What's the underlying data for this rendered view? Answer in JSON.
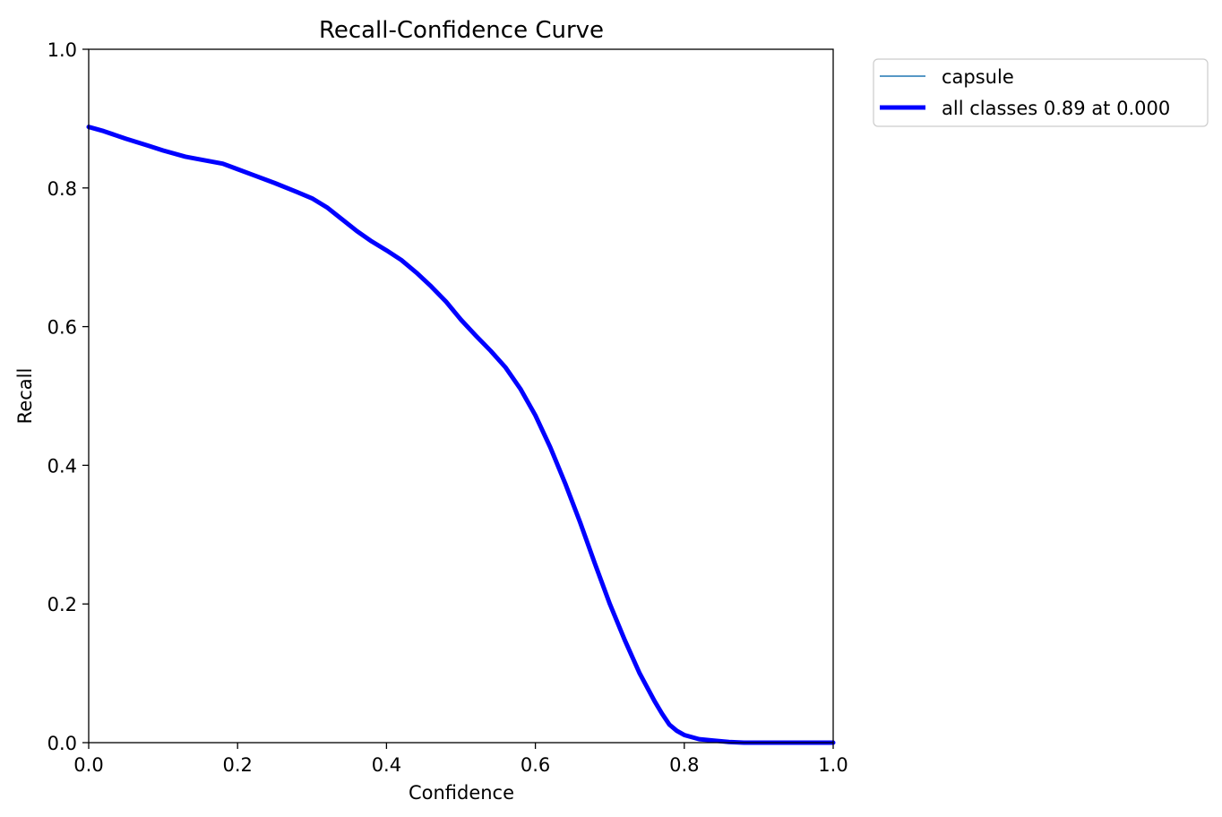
{
  "chart_data": {
    "type": "line",
    "title": "Recall-Confidence Curve",
    "xlabel": "Confidence",
    "ylabel": "Recall",
    "xlim": [
      0.0,
      1.0
    ],
    "ylim": [
      0.0,
      1.0
    ],
    "xticks": [
      "0.0",
      "0.2",
      "0.4",
      "0.6",
      "0.8",
      "1.0"
    ],
    "yticks": [
      "0.0",
      "0.2",
      "0.4",
      "0.6",
      "0.8",
      "1.0"
    ],
    "grid": false,
    "legend_position": "outside-top-right",
    "series": [
      {
        "name": "capsule",
        "color": "#1f77b4",
        "width": "thin",
        "x": [
          0.0,
          0.02,
          0.05,
          0.08,
          0.1,
          0.13,
          0.15,
          0.18,
          0.2,
          0.22,
          0.25,
          0.28,
          0.3,
          0.32,
          0.34,
          0.36,
          0.38,
          0.4,
          0.42,
          0.44,
          0.46,
          0.48,
          0.5,
          0.52,
          0.54,
          0.56,
          0.58,
          0.6,
          0.62,
          0.64,
          0.66,
          0.68,
          0.7,
          0.72,
          0.74,
          0.76,
          0.77,
          0.78,
          0.79,
          0.8,
          0.82,
          0.84,
          0.86,
          0.88,
          0.9,
          0.95,
          1.0
        ],
        "y": [
          0.888,
          0.882,
          0.871,
          0.861,
          0.854,
          0.845,
          0.841,
          0.835,
          0.827,
          0.819,
          0.807,
          0.794,
          0.785,
          0.772,
          0.755,
          0.738,
          0.723,
          0.71,
          0.696,
          0.678,
          0.658,
          0.636,
          0.61,
          0.587,
          0.565,
          0.541,
          0.51,
          0.472,
          0.426,
          0.374,
          0.318,
          0.258,
          0.2,
          0.148,
          0.1,
          0.06,
          0.042,
          0.026,
          0.017,
          0.011,
          0.005,
          0.003,
          0.001,
          0.0,
          0.0,
          0.0,
          0.0
        ]
      },
      {
        "name": "all classes 0.89 at 0.000",
        "color": "#0000ff",
        "width": "thick",
        "x": [
          0.0,
          0.02,
          0.05,
          0.08,
          0.1,
          0.13,
          0.15,
          0.18,
          0.2,
          0.22,
          0.25,
          0.28,
          0.3,
          0.32,
          0.34,
          0.36,
          0.38,
          0.4,
          0.42,
          0.44,
          0.46,
          0.48,
          0.5,
          0.52,
          0.54,
          0.56,
          0.58,
          0.6,
          0.62,
          0.64,
          0.66,
          0.68,
          0.7,
          0.72,
          0.74,
          0.76,
          0.77,
          0.78,
          0.79,
          0.8,
          0.82,
          0.84,
          0.86,
          0.88,
          0.9,
          0.95,
          1.0
        ],
        "y": [
          0.888,
          0.882,
          0.871,
          0.861,
          0.854,
          0.845,
          0.841,
          0.835,
          0.827,
          0.819,
          0.807,
          0.794,
          0.785,
          0.772,
          0.755,
          0.738,
          0.723,
          0.71,
          0.696,
          0.678,
          0.658,
          0.636,
          0.61,
          0.587,
          0.565,
          0.541,
          0.51,
          0.472,
          0.426,
          0.374,
          0.318,
          0.258,
          0.2,
          0.148,
          0.1,
          0.06,
          0.042,
          0.026,
          0.017,
          0.011,
          0.005,
          0.003,
          0.001,
          0.0,
          0.0,
          0.0,
          0.0
        ]
      }
    ]
  }
}
